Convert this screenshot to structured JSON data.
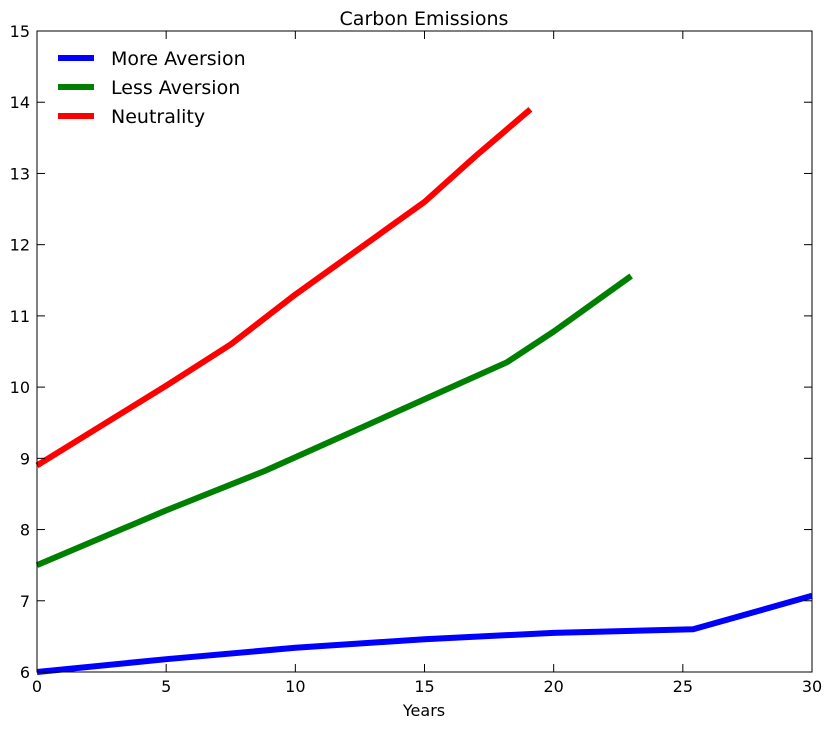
{
  "chart_data": {
    "type": "line",
    "title": "Carbon Emissions",
    "xlabel": "Years",
    "ylabel": "",
    "xlim": [
      0,
      30
    ],
    "ylim": [
      6,
      15
    ],
    "xticks": [
      0,
      5,
      10,
      15,
      20,
      25,
      30
    ],
    "yticks": [
      6,
      7,
      8,
      9,
      10,
      11,
      12,
      13,
      14,
      15
    ],
    "grid": false,
    "legend_position": "top-left",
    "series": [
      {
        "name": "More Aversion",
        "color": "#0000ff",
        "x": [
          0,
          5,
          10,
          15,
          20,
          25.4,
          30
        ],
        "y": [
          6.0,
          6.18,
          6.34,
          6.46,
          6.55,
          6.6,
          7.07
        ]
      },
      {
        "name": "Less Aversion",
        "color": "#008000",
        "x": [
          0,
          5,
          8.8,
          12,
          15,
          18.2,
          20,
          23
        ],
        "y": [
          7.5,
          8.27,
          8.82,
          9.34,
          9.83,
          10.35,
          10.78,
          11.56
        ]
      },
      {
        "name": "Neutrality",
        "color": "#ff0000",
        "x": [
          0,
          5,
          7.5,
          10,
          15,
          17,
          19.1
        ],
        "y": [
          8.9,
          10.02,
          10.6,
          11.3,
          12.6,
          13.25,
          13.9
        ]
      }
    ]
  }
}
